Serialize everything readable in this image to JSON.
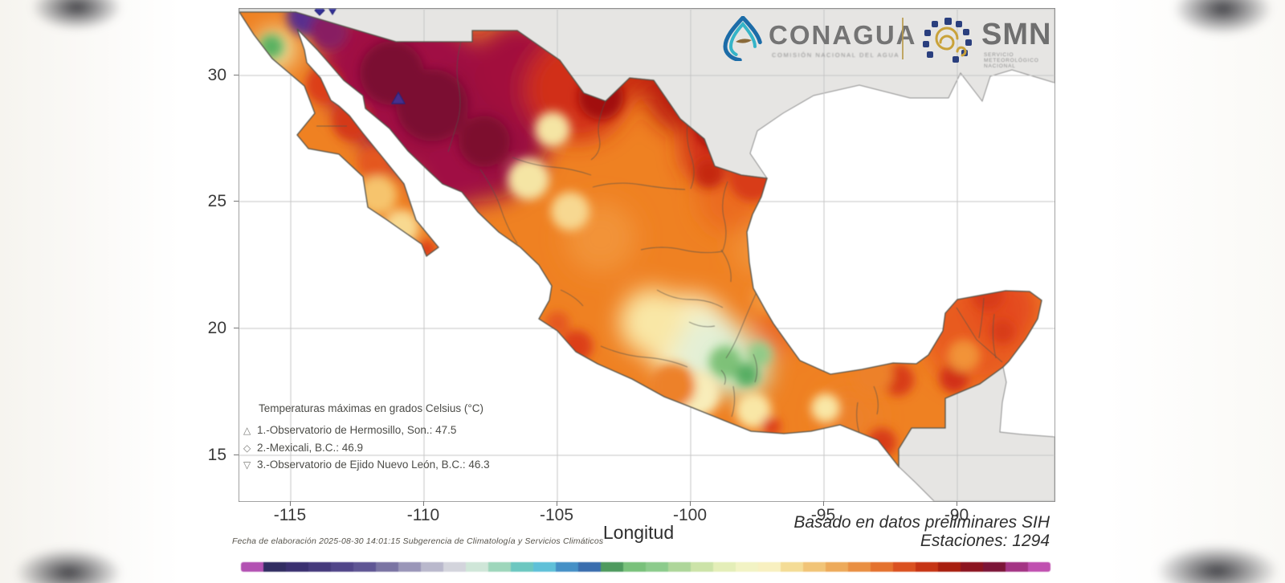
{
  "header": {
    "conagua_name": "CONAGUA",
    "conagua_tagline": "COMISIÓN NACIONAL DEL AGUA",
    "smn_name": "SMN",
    "smn_tagline_1": "SERVICIO",
    "smn_tagline_2": "METEOROLÓGICO",
    "smn_tagline_3": "NACIONAL"
  },
  "legend": {
    "title": "Temperaturas máximas en grados Celsius (°C)",
    "stations": [
      {
        "symbol": "△",
        "text": "1.-Observatorio de Hermosillo, Son.: 47.5"
      },
      {
        "symbol": "◇",
        "text": "2.-Mexicali, B.C.: 46.9"
      },
      {
        "symbol": "▽",
        "text": "3.-Observatorio de Ejido Nuevo León, B.C.: 46.3"
      }
    ]
  },
  "axes": {
    "x_label": "Longitud",
    "x_ticks": [
      "-115",
      "-110",
      "-105",
      "-100",
      "-95",
      "-90"
    ],
    "y_ticks": [
      "30",
      "25",
      "20",
      "15"
    ]
  },
  "notes": {
    "source": "Basado en datos preliminares SIH",
    "stations_count": "Estaciones:  1294",
    "elaboration": "Fecha de elaboración 2025-08-30 14:01:15 Subgerencia de Climatología y Servicios Climáticos"
  },
  "colorbar": {
    "colors": [
      "#b351b3",
      "#312d62",
      "#3a3070",
      "#453a7c",
      "#514689",
      "#5f5694",
      "#7a74a3",
      "#9a96b8",
      "#b9b8cc",
      "#d3d4dc",
      "#cfe6d8",
      "#9ed6bb",
      "#6cc7c0",
      "#5fc0d8",
      "#4590c6",
      "#3a6dae",
      "#4e9a5e",
      "#79c17b",
      "#8ccb8c",
      "#aed69a",
      "#cce3a8",
      "#e4eeb8",
      "#f2f3c4",
      "#f8f0c0",
      "#f4dc96",
      "#f1c477",
      "#edaa5a",
      "#e98f42",
      "#e4722e",
      "#da5120",
      "#c63414",
      "#a81e0e",
      "#8c1420",
      "#7c1538",
      "#a43484",
      "#c050b0"
    ]
  }
}
